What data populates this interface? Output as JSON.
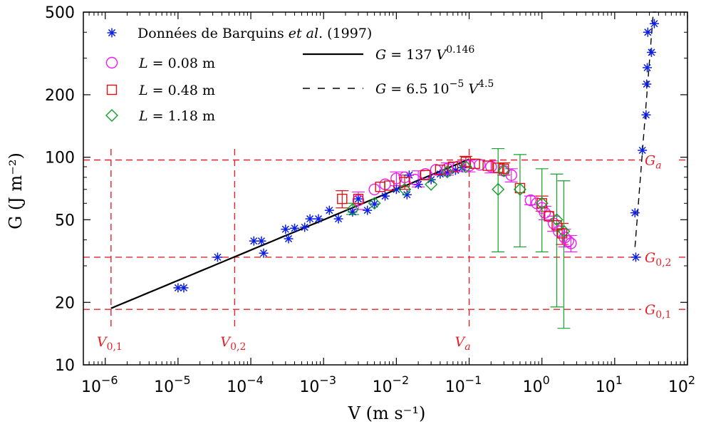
{
  "colors": {
    "barquins": "#0a1ee6",
    "l008": "#f01bf0",
    "l048": "#e01010",
    "l118": "#11a02a",
    "reference": "#e8202a",
    "fit": "#000000"
  },
  "chart_data": {
    "type": "scatter",
    "xscale": "log",
    "yscale": "log",
    "xlim": [
      5e-07,
      100
    ],
    "ylim": [
      10,
      500
    ],
    "xlabel": "V (m s⁻¹)",
    "ylabel": "G (J m⁻²)",
    "x_ticks": [
      {
        "value": 1e-06,
        "base": "10",
        "exp": "−6"
      },
      {
        "value": 1e-05,
        "base": "10",
        "exp": "−5"
      },
      {
        "value": 0.0001,
        "base": "10",
        "exp": "−4"
      },
      {
        "value": 0.001,
        "base": "10",
        "exp": "−3"
      },
      {
        "value": 0.01,
        "base": "10",
        "exp": "−2"
      },
      {
        "value": 0.1,
        "base": "10",
        "exp": "−1"
      },
      {
        "value": 1,
        "base": "10",
        "exp": "0"
      },
      {
        "value": 10,
        "base": "10",
        "exp": "1"
      },
      {
        "value": 100,
        "base": "10",
        "exp": "2"
      }
    ],
    "y_ticks": [
      {
        "value": 10,
        "label": "10"
      },
      {
        "value": 20,
        "label": "20"
      },
      {
        "value": 50,
        "label": "50"
      },
      {
        "value": 100,
        "label": "100"
      },
      {
        "value": 200,
        "label": "200"
      },
      {
        "value": 500,
        "label": "500"
      }
    ],
    "legend": [
      {
        "label": "Données de Barquins et al. (1997)",
        "marker": "asterisk"
      },
      {
        "label": "L = 0.08 m",
        "marker": "circle"
      },
      {
        "label": "L = 0.48 m",
        "marker": "square"
      },
      {
        "label": "L = 1.18 m",
        "marker": "diamond"
      },
      {
        "label": "G = 137 V^0.146",
        "marker": "solid-line"
      },
      {
        "label": "G = 6.5 10^−5 V^4.5",
        "marker": "dashed-line"
      }
    ],
    "reference_lines": {
      "horizontal": [
        {
          "label": "Ga",
          "value": 97
        },
        {
          "label": "G0,2",
          "value": 33
        },
        {
          "label": "G0,1",
          "value": 18.5
        }
      ],
      "vertical": [
        {
          "label": "V0,1",
          "value": 1.2e-06
        },
        {
          "label": "V0,2",
          "value": 6e-05
        },
        {
          "label": "Va",
          "value": 0.1
        }
      ]
    },
    "fits": [
      {
        "name": "G = 137 V^0.146",
        "style": "solid",
        "x_range": [
          1.2e-06,
          0.1
        ],
        "coef": 137,
        "exponent": 0.146
      },
      {
        "name": "G = 6.5 10^-5 V^4.5",
        "style": "dashed",
        "x_range": [
          19,
          37
        ],
        "coef": 6.5e-05,
        "exponent": 4.5
      }
    ],
    "series": [
      {
        "name": "Données de Barquins et al. (1997)",
        "marker": "asterisk",
        "points": [
          [
            1e-05,
            23.5
          ],
          [
            1.2e-05,
            23.5
          ],
          [
            3.5e-05,
            33
          ],
          [
            0.00011,
            39.5
          ],
          [
            0.00014,
            39.5
          ],
          [
            0.00015,
            34.5
          ],
          [
            0.0003,
            45
          ],
          [
            0.00033,
            40.5
          ],
          [
            0.0004,
            45.5
          ],
          [
            0.00055,
            46
          ],
          [
            0.00065,
            50.5
          ],
          [
            0.00085,
            50.5
          ],
          [
            0.0012,
            55.5
          ],
          [
            0.0016,
            50.5
          ],
          [
            0.0025,
            54.5
          ],
          [
            0.003,
            63
          ],
          [
            0.004,
            55.5
          ],
          [
            0.005,
            59.5
          ],
          [
            0.007,
            65
          ],
          [
            0.01,
            70
          ],
          [
            0.014,
            66
          ],
          [
            0.015,
            82
          ],
          [
            0.02,
            74
          ],
          [
            0.03,
            78
          ],
          [
            0.04,
            83
          ],
          [
            0.05,
            84
          ],
          [
            0.065,
            86.5
          ],
          [
            0.08,
            89
          ],
          [
            19,
            54
          ],
          [
            19.5,
            33
          ],
          [
            24,
            108
          ],
          [
            27,
            160
          ],
          [
            27.5,
            225
          ],
          [
            28,
            270
          ],
          [
            28.5,
            400
          ],
          [
            32,
            320
          ],
          [
            35,
            440
          ]
        ]
      },
      {
        "name": "L = 0.08 m",
        "marker": "circle",
        "points": [
          [
            0.003,
            62
          ],
          [
            0.005,
            70
          ],
          [
            0.007,
            74
          ],
          [
            0.01,
            79
          ],
          [
            0.013,
            80
          ],
          [
            0.018,
            78
          ],
          [
            0.025,
            83
          ],
          [
            0.035,
            87
          ],
          [
            0.05,
            88
          ],
          [
            0.07,
            90
          ],
          [
            0.1,
            91
          ],
          [
            0.14,
            92
          ],
          [
            0.2,
            90
          ],
          [
            0.3,
            86
          ],
          [
            0.38,
            82
          ],
          [
            0.7,
            62
          ],
          [
            0.85,
            60
          ],
          [
            1,
            57
          ],
          [
            1.1,
            54
          ],
          [
            1.25,
            52
          ],
          [
            1.45,
            48
          ],
          [
            1.7,
            44
          ],
          [
            2.05,
            41
          ],
          [
            2.3,
            39.5
          ],
          [
            2.5,
            38.5
          ]
        ],
        "errors": [
          [
            0.003,
            56,
            68
          ],
          [
            0.01,
            73,
            85
          ],
          [
            0.02,
            72,
            86
          ],
          [
            0.05,
            82,
            94
          ],
          [
            0.1,
            85,
            97
          ],
          [
            0.2,
            84,
            96
          ],
          [
            0.38,
            76,
            88
          ],
          [
            0.7,
            59,
            65
          ],
          [
            1.1,
            50,
            58
          ],
          [
            1.45,
            44,
            52
          ],
          [
            2.05,
            37,
            45
          ],
          [
            2.5,
            35,
            42
          ]
        ]
      },
      {
        "name": "L = 0.48 m",
        "marker": "square",
        "points": [
          [
            0.0018,
            63
          ],
          [
            0.003,
            63
          ],
          [
            0.006,
            72
          ],
          [
            0.008,
            73
          ],
          [
            0.013,
            76
          ],
          [
            0.025,
            82
          ],
          [
            0.04,
            87
          ],
          [
            0.06,
            90
          ],
          [
            0.09,
            95
          ],
          [
            0.12,
            93
          ],
          [
            0.18,
            91
          ],
          [
            0.25,
            89
          ],
          [
            0.3,
            88
          ],
          [
            0.5,
            71
          ],
          [
            1,
            60
          ],
          [
            1.25,
            52
          ],
          [
            1.6,
            47
          ],
          [
            1.9,
            43
          ]
        ],
        "errors": [
          [
            0.0018,
            57,
            69
          ],
          [
            0.013,
            70,
            82
          ],
          [
            0.09,
            89,
            101
          ],
          [
            0.3,
            82,
            94
          ],
          [
            1,
            55,
            65
          ],
          [
            1.9,
            38,
            48
          ]
        ]
      },
      {
        "name": "L = 1.18 m",
        "marker": "diamond",
        "points": [
          [
            0.0025,
            56
          ],
          [
            0.005,
            60
          ],
          [
            0.013,
            70
          ],
          [
            0.03,
            74
          ],
          [
            0.05,
            85
          ],
          [
            0.09,
            90
          ],
          [
            0.3,
            86
          ],
          [
            0.25,
            70
          ],
          [
            0.5,
            70
          ],
          [
            1,
            60
          ],
          [
            1.6,
            50
          ],
          [
            2,
            44
          ]
        ],
        "errors": [
          [
            0.0025,
            53,
            60
          ],
          [
            0.25,
            35,
            110
          ],
          [
            0.5,
            37,
            103
          ],
          [
            1,
            35,
            88
          ],
          [
            1.6,
            19,
            83
          ],
          [
            2,
            15,
            77
          ]
        ]
      }
    ]
  }
}
